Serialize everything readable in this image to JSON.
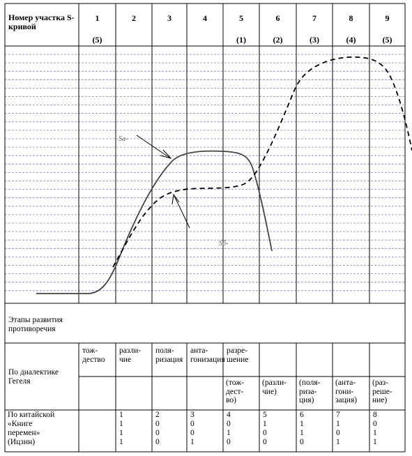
{
  "header": {
    "title": "Номер участка S-кривой",
    "sections": [
      "1",
      "2",
      "3",
      "4",
      "5",
      "6",
      "7",
      "8",
      "9"
    ],
    "sub_numbers": [
      "(5)",
      "",
      "",
      "",
      "(1)",
      "(2)",
      "(3)",
      "(4)",
      "(5)"
    ]
  },
  "curve_labels": {
    "sa": "Sa-",
    "sb": "Sб-"
  },
  "stages": {
    "label": "Этапы развития противоречия"
  },
  "hegel": {
    "label": "По диалектике Гегеля",
    "row1": [
      "тож-\nдество",
      "разли-\nчие",
      "поля-\nризация",
      "анта-\nгонизация",
      "разре-\nшение"
    ],
    "row2": [
      "(тож-\nдест-\nво)",
      "(разли-\nчие)",
      "(поля-\nриза-\nция)",
      "(анта-\nгони-\nзация)",
      "(раз-\nреше-\nние)"
    ]
  },
  "china": {
    "label_lines": [
      "По китайской",
      "«Книге",
      "перемен»",
      "(Ицзин)"
    ],
    "columns": [
      [
        "1",
        "1",
        "1",
        "1"
      ],
      [
        "2",
        "0",
        "0",
        "0"
      ],
      [
        "3",
        "0",
        "0",
        "1"
      ],
      [
        "4",
        "0",
        "1",
        "0"
      ],
      [
        "5",
        "1",
        "0",
        "0"
      ],
      [
        "6",
        "1",
        "1",
        "0"
      ],
      [
        "7",
        "1",
        "0",
        "1"
      ],
      [
        "8",
        "0",
        "1",
        "1"
      ]
    ]
  }
}
